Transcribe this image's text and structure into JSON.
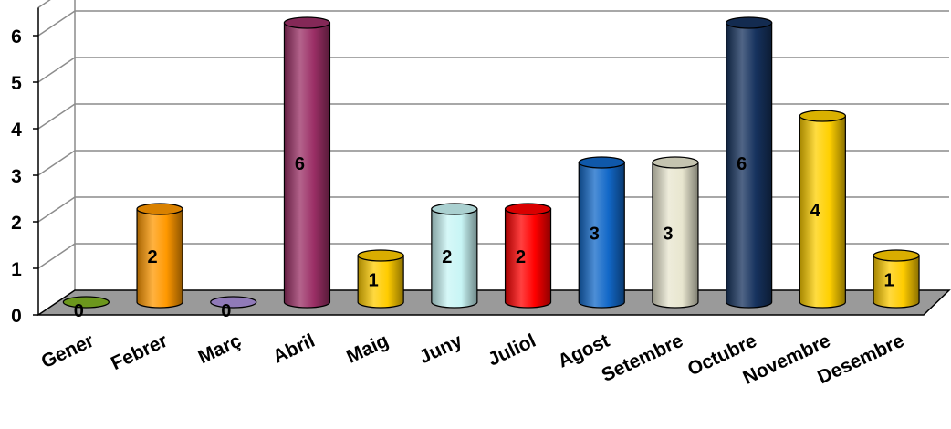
{
  "chart_data": {
    "type": "bar",
    "style": "3d-cylinder",
    "categories": [
      "Gener",
      "Febrer",
      "Març",
      "Abril",
      "Maig",
      "Juny",
      "Juliol",
      "Agost",
      "Setembre",
      "Octubre",
      "Novembre",
      "Desembre"
    ],
    "values": [
      0,
      2,
      0,
      6,
      1,
      2,
      2,
      3,
      3,
      6,
      4,
      1
    ],
    "colors": [
      "#7fb222",
      "#ff9800",
      "#a98fd8",
      "#9b2f66",
      "#ffcc00",
      "#c8f5f5",
      "#ff0000",
      "#1268c8",
      "#e8e6cf",
      "#16325e",
      "#ffd000",
      "#ffcc00"
    ],
    "yticks": [
      0,
      1,
      2,
      3,
      4,
      5,
      6
    ],
    "ylim": [
      0,
      6
    ],
    "grid": true,
    "legend": "none",
    "floor_color": "#9a9a9a"
  }
}
